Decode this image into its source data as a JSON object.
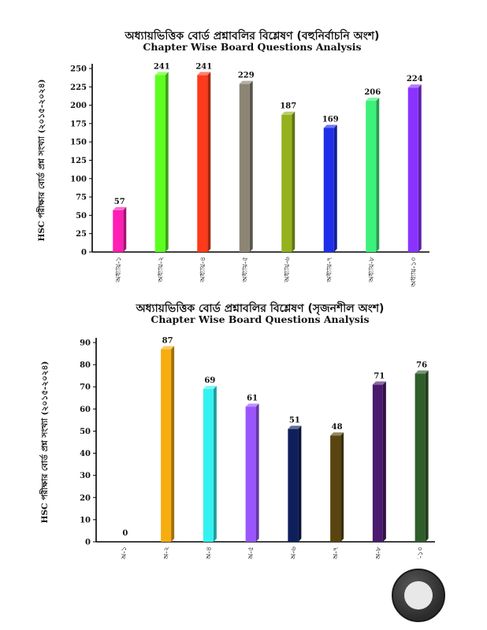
{
  "chart_data": [
    {
      "type": "bar",
      "title": "অধ্যায়ভিত্তিক বোর্ড প্রশ্নাবলির বিশ্লেষণ (বহুনির্বাচনি অংশ)",
      "subtitle": "Chapter Wise Board Questions Analysis",
      "ylabel": "HSC পরীক্ষার বোর্ড প্রশ্ন সংখ্যা (২০১৫-২০২৪)",
      "xlabel": "",
      "categories": [
        "অধ্যায়-১",
        "অধ্যায়-২",
        "অধ্যায়-৪",
        "অধ্যায়-৫",
        "অধ্যায়-৬",
        "অধ্যায়-৭",
        "অধ্যায়-৮",
        "অধ্যায়-১০"
      ],
      "values": [
        57,
        241,
        241,
        229,
        187,
        169,
        206,
        224
      ],
      "colors": [
        "#ff1fb4",
        "#5cff1f",
        "#ff3a1a",
        "#8c8574",
        "#93b21c",
        "#1f2ee8",
        "#3cf27a",
        "#8a33ff"
      ],
      "ylim": [
        0,
        250
      ],
      "yticks": [
        0,
        25,
        50,
        75,
        100,
        125,
        150,
        175,
        200,
        225,
        250
      ],
      "grid": false,
      "legend": "none"
    },
    {
      "type": "bar",
      "title": "অধ্যায়ভিত্তিক বোর্ড প্রশ্নাবলির বিশ্লেষণ (সৃজনশীল অংশ)",
      "subtitle": "Chapter Wise Board Questions Analysis",
      "ylabel": "HSC পরীক্ষার বোর্ড প্রশ্ন সংখ্যা (২০১৫-২০২৪)",
      "xlabel": "",
      "categories": [
        "অ-১",
        "অ-২",
        "অ-৪",
        "অ-৫",
        "অ-৬",
        "অ-৭",
        "অ-৮",
        "অ-১০"
      ],
      "values": [
        0,
        87,
        69,
        61,
        51,
        48,
        71,
        76
      ],
      "colors": [
        "#cccccc",
        "#f7ad10",
        "#34f2f2",
        "#9a55ff",
        "#0f1f5c",
        "#5a4510",
        "#4a1a6e",
        "#2f5e2a"
      ],
      "ylim": [
        0,
        90
      ],
      "yticks": [
        0,
        10,
        20,
        30,
        40,
        50,
        60,
        70,
        80,
        90
      ],
      "grid": false,
      "legend": "none"
    }
  ],
  "logo_icon": "book-logo-icon"
}
